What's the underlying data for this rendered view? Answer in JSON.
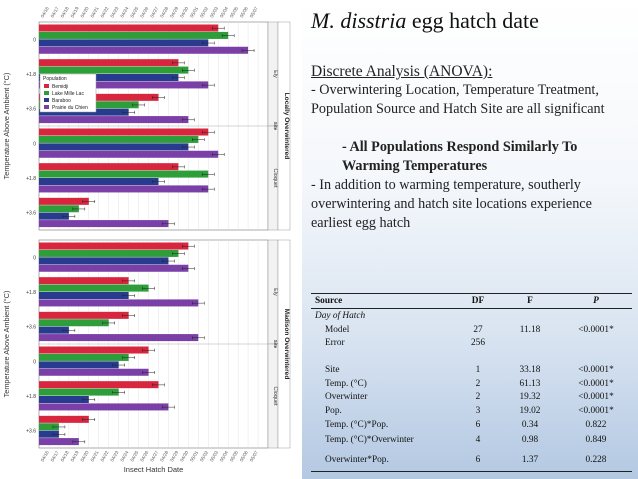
{
  "title": {
    "species": "M. disstria",
    "rest": " egg hatch date"
  },
  "text": {
    "analysis_heading": "Discrete Analysis (ANOVA):",
    "bullet_1": "- Overwintering Location, Temperature Treatment, Population Source and Hatch Site are all significant",
    "sub_bullet": "- All Populations Respond Similarly To Warming Temperatures",
    "bullet_2": "- In addition to warming temperature, southerly overwintering and hatch site locations experience earliest egg hatch"
  },
  "table": {
    "headers": {
      "source": "Source",
      "df": "DF",
      "f": "F",
      "p": "P"
    },
    "section_label": "Day of Hatch",
    "rows": [
      {
        "source": "Model",
        "df": "27",
        "f": "11.18",
        "p": "<0.0001*"
      },
      {
        "source": "Error",
        "df": "256",
        "f": "",
        "p": ""
      },
      {
        "source": "Site",
        "df": "1",
        "f": "33.18",
        "p": "<0.0001*"
      },
      {
        "source": "Temp. (°C)",
        "df": "2",
        "f": "61.13",
        "p": "<0.0001*"
      },
      {
        "source": "Overwinter",
        "df": "2",
        "f": "19.32",
        "p": "<0.0001*"
      },
      {
        "source": "Pop.",
        "df": "3",
        "f": "19.02",
        "p": "<0.0001*"
      },
      {
        "source": "Temp. (°C)*Pop.",
        "df": "6",
        "f": "0.34",
        "p": "0.822"
      },
      {
        "source": "Temp. (°C)*Overwinter",
        "df": "4",
        "f": "0.98",
        "p": "0.849"
      },
      {
        "source": "Overwinter*Pop.",
        "df": "6",
        "f": "1.37",
        "p": "0.228"
      }
    ]
  },
  "chart_data": {
    "type": "bar",
    "orientation": "horizontal",
    "xlabel": "Insect Hatch Date",
    "ylabel": "Temperature Above Ambient (°C)",
    "x_ticks": [
      "04/16",
      "04/17",
      "04/18",
      "04/19",
      "04/20",
      "04/21",
      "04/22",
      "04/23",
      "04/24",
      "04/25",
      "04/26",
      "04/27",
      "04/28",
      "04/29",
      "04/30",
      "05/01",
      "05/02",
      "05/03",
      "05/04",
      "05/05",
      "05/06",
      "05/07"
    ],
    "x_range": [
      "04/15",
      "05/08"
    ],
    "legend_title": "Population",
    "legend_position": "upper-left of top panel",
    "series_colors": {
      "Bemidji": "#d7263d",
      "Lake Mille Lac": "#2e9e3a",
      "Baraboo": "#283b8f",
      "Prairie du Chien": "#7b3fa8"
    },
    "series": [
      "Bemidji",
      "Lake Mille Lac",
      "Baraboo",
      "Prairie du Chien"
    ],
    "panels": [
      {
        "label": "Locally Overwintered",
        "sites": [
          {
            "name": "Ely",
            "groups": [
              {
                "temp": "0",
                "values": [
                  "05/03",
                  "05/04",
                  "05/02",
                  "05/06"
                ]
              },
              {
                "temp": "+1.8",
                "values": [
                  "04/29",
                  "04/30",
                  "04/29",
                  "05/02"
                ]
              },
              {
                "temp": "+3.6",
                "values": [
                  "04/27",
                  "04/25",
                  "04/24",
                  "04/30"
                ]
              }
            ]
          },
          {
            "name": "Cloquet",
            "groups": [
              {
                "temp": "0",
                "values": [
                  "05/02",
                  "05/01",
                  "04/30",
                  "05/03"
                ]
              },
              {
                "temp": "+1.8",
                "values": [
                  "04/29",
                  "05/02",
                  "04/27",
                  "05/02"
                ]
              },
              {
                "temp": "+3.6",
                "values": [
                  "04/20",
                  "04/19",
                  "04/18",
                  "04/28"
                ]
              }
            ]
          }
        ]
      },
      {
        "label": "Madison Overwintered",
        "sites": [
          {
            "name": "Ely",
            "groups": [
              {
                "temp": "0",
                "values": [
                  "04/30",
                  "04/29",
                  "04/28",
                  "04/30"
                ]
              },
              {
                "temp": "+1.8",
                "values": [
                  "04/24",
                  "04/26",
                  "04/24",
                  "05/01"
                ]
              },
              {
                "temp": "+3.6",
                "values": [
                  "04/24",
                  "04/22",
                  "04/18",
                  "05/01"
                ]
              }
            ]
          },
          {
            "name": "Cloquet",
            "groups": [
              {
                "temp": "0",
                "values": [
                  "04/26",
                  "04/24",
                  "04/23",
                  "04/26"
                ]
              },
              {
                "temp": "+1.8",
                "values": [
                  "04/27",
                  "04/23",
                  "04/20",
                  "04/28"
                ]
              },
              {
                "temp": "+3.6",
                "values": [
                  "04/20",
                  "04/17",
                  "04/17",
                  "04/19"
                ]
              }
            ]
          }
        ]
      }
    ]
  }
}
